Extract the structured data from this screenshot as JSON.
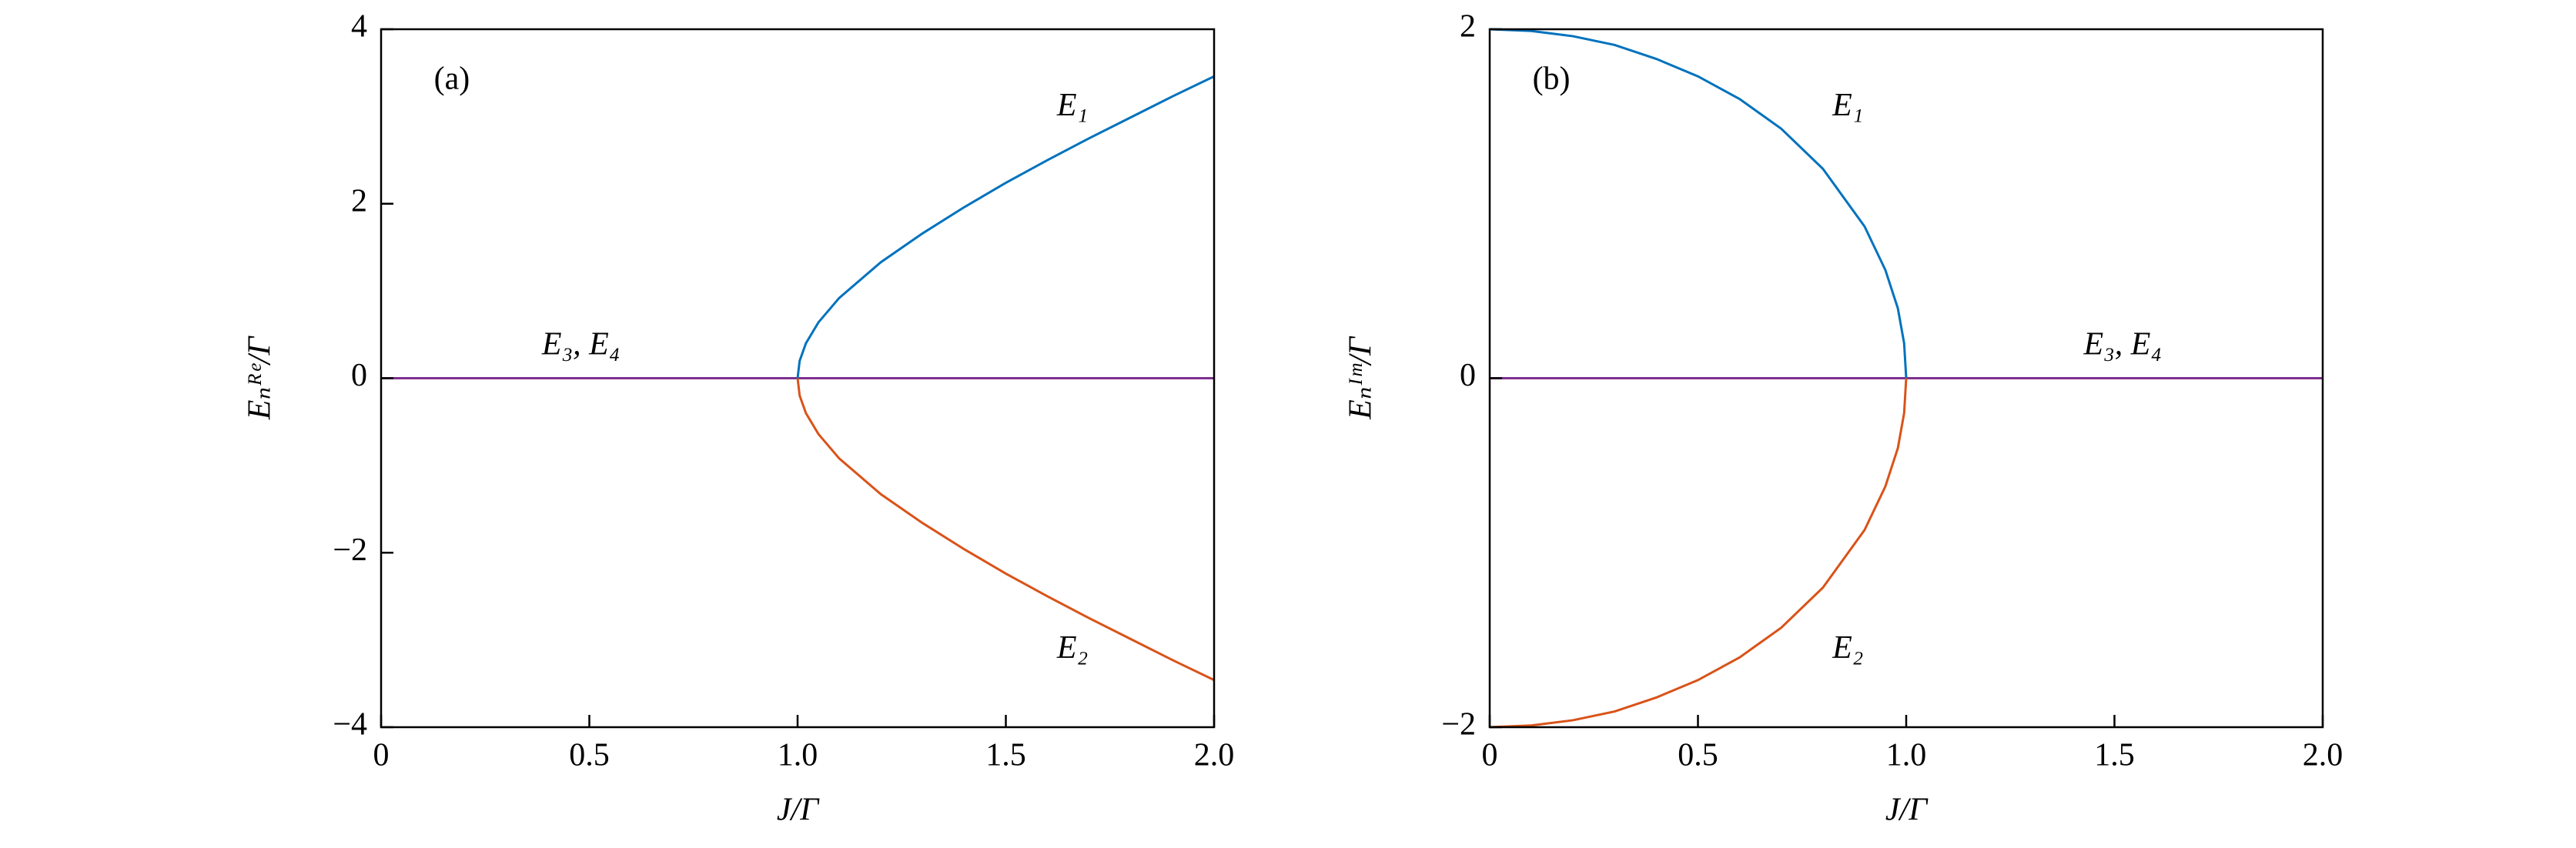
{
  "chart_data": [
    {
      "type": "line",
      "title": "(a)",
      "x_label": "J/Γ",
      "y_label": "Eₙᴿᵉ/Γ",
      "x": [
        0,
        1,
        1.005,
        1.02,
        1.05,
        1.1,
        1.2,
        1.3,
        1.4,
        1.5,
        1.6,
        1.7,
        1.8,
        1.9,
        2.0
      ],
      "series": [
        {
          "name": "E₃, E₄",
          "color": "#7e2f8e",
          "values": [
            0,
            0,
            0,
            0,
            0,
            0,
            0,
            0,
            0,
            0,
            0,
            0,
            0,
            0,
            0
          ]
        },
        {
          "name": "E₁",
          "color": "#0072bd",
          "values": [
            null,
            0,
            0.2,
            0.4,
            0.64,
            0.92,
            1.33,
            1.66,
            1.96,
            2.24,
            2.5,
            2.75,
            2.99,
            3.23,
            3.46
          ]
        },
        {
          "name": "E₂",
          "color": "#d95319",
          "values": [
            null,
            0,
            -0.2,
            -0.4,
            -0.64,
            -0.92,
            -1.33,
            -1.66,
            -1.96,
            -2.24,
            -2.5,
            -2.75,
            -2.99,
            -3.23,
            -3.46
          ]
        }
      ],
      "xlim": [
        0,
        2
      ],
      "ylim": [
        -4,
        4
      ],
      "xticks": [
        0,
        0.5,
        {
          "value": 1,
          "label": "1.0"
        },
        1.5,
        {
          "value": 2,
          "label": "2.0"
        }
      ],
      "yticks": [
        {
          "value": -4,
          "label": "−4"
        },
        {
          "value": -2,
          "label": "−2"
        },
        0,
        2,
        4
      ]
    },
    {
      "type": "line",
      "title": "(b)",
      "x_label": "J/Γ",
      "y_label": "Eₙᴵᵐ/Γ",
      "x": [
        0,
        0.1,
        0.2,
        0.3,
        0.4,
        0.5,
        0.6,
        0.7,
        0.8,
        0.9,
        0.95,
        0.98,
        0.995,
        1,
        2
      ],
      "series": [
        {
          "name": "E₃, E₄",
          "color": "#7e2f8e",
          "values": [
            0,
            0,
            0,
            0,
            0,
            0,
            0,
            0,
            0,
            0,
            0,
            0,
            0,
            0,
            0
          ]
        },
        {
          "name": "E₁",
          "color": "#0072bd",
          "values": [
            2,
            1.99,
            1.96,
            1.91,
            1.83,
            1.73,
            1.6,
            1.43,
            1.2,
            0.87,
            0.62,
            0.4,
            0.2,
            0,
            null
          ]
        },
        {
          "name": "E₂",
          "color": "#d95319",
          "values": [
            -2,
            -1.99,
            -1.96,
            -1.91,
            -1.83,
            -1.73,
            -1.6,
            -1.43,
            -1.2,
            -0.87,
            -0.62,
            -0.4,
            -0.2,
            0,
            null
          ]
        }
      ],
      "xlim": [
        0,
        2
      ],
      "ylim": [
        -2,
        2
      ],
      "xticks": [
        0,
        0.5,
        {
          "value": 1,
          "label": "1.0"
        },
        1.5,
        {
          "value": 2,
          "label": "2.0"
        }
      ],
      "yticks": [
        {
          "value": -2,
          "label": "−2"
        },
        0,
        2
      ]
    }
  ]
}
